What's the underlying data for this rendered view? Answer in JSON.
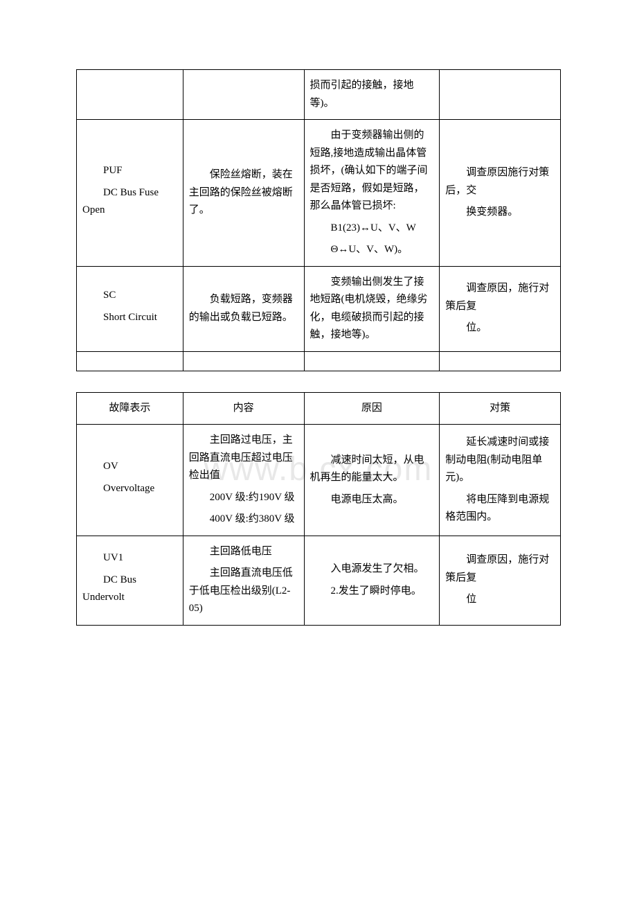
{
  "watermark": "www.b   cx.com",
  "table1": {
    "rows": [
      {
        "col1": "",
        "col2": "",
        "col3": "损而引起的接触，接地等)。",
        "col4": ""
      },
      {
        "col1_line1": "PUF",
        "col1_line2": "DC Bus Fuse Open",
        "col2": "保险丝熔断，装在主回路的保险丝被熔断了。",
        "col3_p1": "由于变频器输出侧的短路,接地造成输出晶体管损坏，(确认如下的端子间是否短路，假如是短路，那么晶体管已损坏:",
        "col3_p2": "B1(23)↔U、V、W",
        "col3_p3": "Θ↔U、V、W)。",
        "col4_p1": "调查原因施行对策后，交",
        "col4_p2": "换变频器。"
      },
      {
        "col1_line1": "SC",
        "col1_line2": "Short Circuit",
        "col2": "负载短路，变频器的输出或负载已短路。",
        "col3": "变频输出侧发生了接地短路(电机烧毁，绝缘劣化，电缆破损而引起的接触，接地等)。",
        "col4_p1": "调查原因，施行对策后复",
        "col4_p2": "位。"
      }
    ]
  },
  "table2": {
    "headers": {
      "h1": "故障表示",
      "h2": "内容",
      "h3": "原因",
      "h4": "对策"
    },
    "rows": [
      {
        "col1_line1": "OV",
        "col1_line2": "Overvoltage",
        "col2_p1": "主回路过电压，主回路直流电压超过电压检出值",
        "col2_p2": "200V 级:约190V 级",
        "col2_p3": "400V 级:约380V 级",
        "col3_p1": "减速时间太短，从电机再生的能量太大。",
        "col3_p2": "电源电压太高。",
        "col4_p1": "延长减速时间或接制动电阻(制动电阻单元)。",
        "col4_p2": "将电压降到电源规格范围内。"
      },
      {
        "col1_line1": "UV1",
        "col1_line2": "DC Bus Undervolt",
        "col2_p1": "主回路低电压",
        "col2_p2": "主回路直流电压低于低电压检出级别(L2-05)",
        "col3_p1": "入电源发生了欠相。",
        "col3_p2": "2.发生了瞬时停电。",
        "col4_p1": "调查原因，施行对策后复",
        "col4_p2": "位"
      }
    ]
  }
}
